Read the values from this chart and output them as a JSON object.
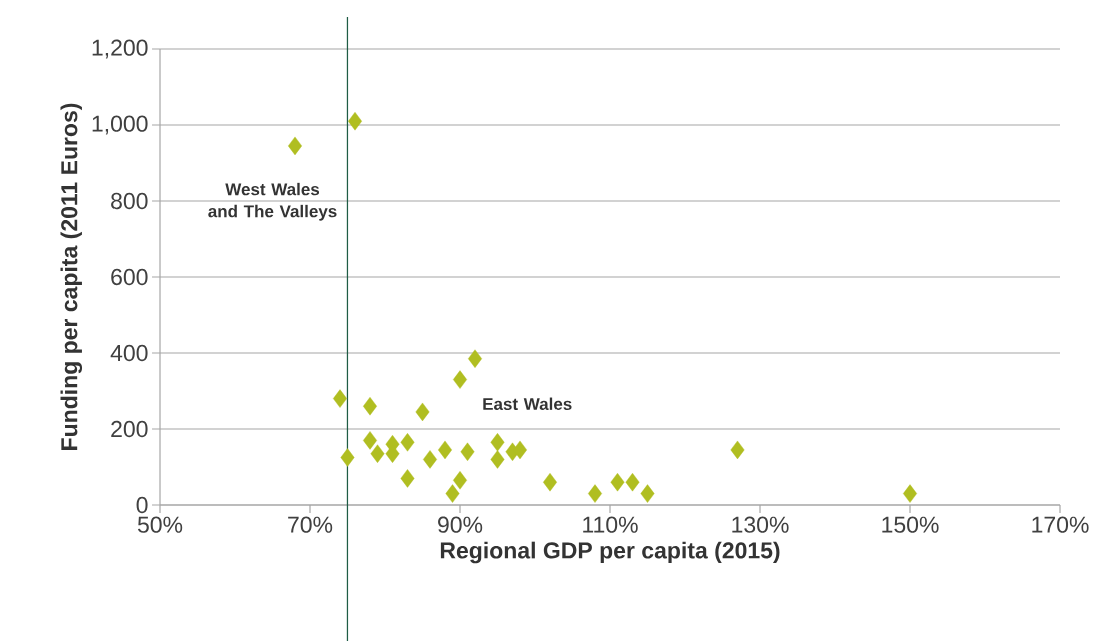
{
  "chart_data": {
    "type": "scatter",
    "xlabel": "Regional GDP per capita (2015)",
    "ylabel": "Funding per capita (2011 Euros)",
    "x": [
      68,
      76,
      74,
      78,
      85,
      90,
      92,
      75,
      78,
      79,
      81,
      81,
      83,
      83,
      86,
      88,
      91,
      90,
      89,
      95,
      95,
      97,
      98,
      102,
      108,
      111,
      113,
      115,
      127,
      150
    ],
    "values": [
      945,
      1010,
      280,
      260,
      245,
      330,
      385,
      125,
      170,
      135,
      160,
      135,
      165,
      70,
      120,
      145,
      140,
      65,
      30,
      165,
      120,
      140,
      145,
      60,
      30,
      60,
      60,
      30,
      145,
      30
    ],
    "color": "#b0be21",
    "marker": "diamond",
    "xlim": [
      50,
      170
    ],
    "ylim": [
      0,
      1200
    ],
    "xticks": [
      {
        "value": 50,
        "label": "50%"
      },
      {
        "value": 70,
        "label": "70%"
      },
      {
        "value": 90,
        "label": "90%"
      },
      {
        "value": 110,
        "label": "110%"
      },
      {
        "value": 130,
        "label": "130%"
      },
      {
        "value": 150,
        "label": "150%"
      },
      {
        "value": 170,
        "label": "170%"
      }
    ],
    "yticks": [
      0,
      200,
      400,
      600,
      800,
      {
        "value": 1000,
        "label": "1,000"
      },
      {
        "value": 1200,
        "label": "1,200"
      }
    ],
    "grid": "y",
    "ref_lines": [
      {
        "axis": "x",
        "value": 75,
        "color": "#1f5c45"
      }
    ],
    "annotations": [
      "West Wales and The Valleys",
      "East Wales"
    ]
  }
}
